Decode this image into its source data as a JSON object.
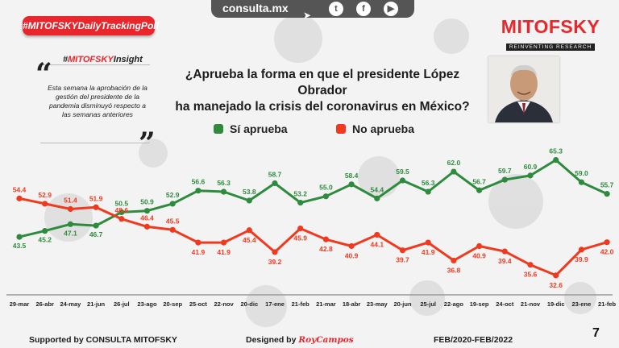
{
  "topbar": {
    "site": "consulta.mx",
    "icons": [
      "twitter-icon",
      "facebook-icon",
      "youtube-icon"
    ]
  },
  "hashtag": "#MITOFSKYDailyTrackingPoll",
  "brand": {
    "name": "MITOFSKY",
    "tagline": "REINVENTING RESEARCH"
  },
  "insight": {
    "title_prefix": "#",
    "title_highlight": "MITOFSKY",
    "title_suffix": "Insight",
    "text": "Esta semana la aprobación de la gestión del presidente de la pandemia disminuyó respecto a las semanas anteriores"
  },
  "footer": {
    "supported": "Supported by   CONSULTA   MITOFSKY",
    "designed_prefix": "Designed by",
    "designed_name": "RoyCampos",
    "period": "FEB/2020-FEB/2022",
    "page": "7"
  },
  "colors": {
    "approve": "#2e8b3d",
    "disapprove": "#f03a1f",
    "brand": "#e8262b"
  },
  "chart_data": {
    "type": "line",
    "title": "¿Aprueba la forma en que el presidente López Obrador ha manejado la crisis del coronavirus en México?",
    "title_lines": [
      "¿Aprueba la forma en que el presidente López Obrador",
      "ha manejado la crisis del coronavirus en México?"
    ],
    "categories": [
      "29-mar",
      "26-abr",
      "24-may",
      "21-jun",
      "26-jul",
      "23-ago",
      "20-sep",
      "25-oct",
      "22-nov",
      "20-dic",
      "17-ene",
      "21-feb",
      "21-mar",
      "18-abr",
      "23-may",
      "20-jun",
      "25-jul",
      "22-ago",
      "19-sep",
      "24-oct",
      "21-nov",
      "19-dic",
      "23-ene",
      "21-feb"
    ],
    "series": [
      {
        "name": "Sí aprueba",
        "color": "#2e8b3d",
        "values": [
          43.5,
          45.2,
          47.1,
          46.7,
          50.5,
          50.9,
          52.9,
          56.6,
          56.3,
          53.8,
          58.7,
          53.2,
          55.0,
          58.4,
          54.4,
          59.5,
          56.3,
          62.0,
          56.7,
          59.7,
          60.9,
          65.3,
          59.0,
          55.7
        ]
      },
      {
        "name": "No aprueba",
        "color": "#f03a1f",
        "values": [
          54.4,
          52.9,
          51.4,
          51.9,
          48.6,
          46.4,
          45.5,
          41.9,
          41.9,
          45.4,
          39.2,
          45.9,
          42.8,
          40.9,
          44.1,
          39.7,
          41.9,
          36.8,
          40.9,
          39.4,
          35.6,
          32.6,
          39.9,
          42.0
        ]
      }
    ],
    "xlabel": "",
    "ylabel": "",
    "ylim": [
      28,
      70
    ],
    "grid": false,
    "legend": "top"
  }
}
